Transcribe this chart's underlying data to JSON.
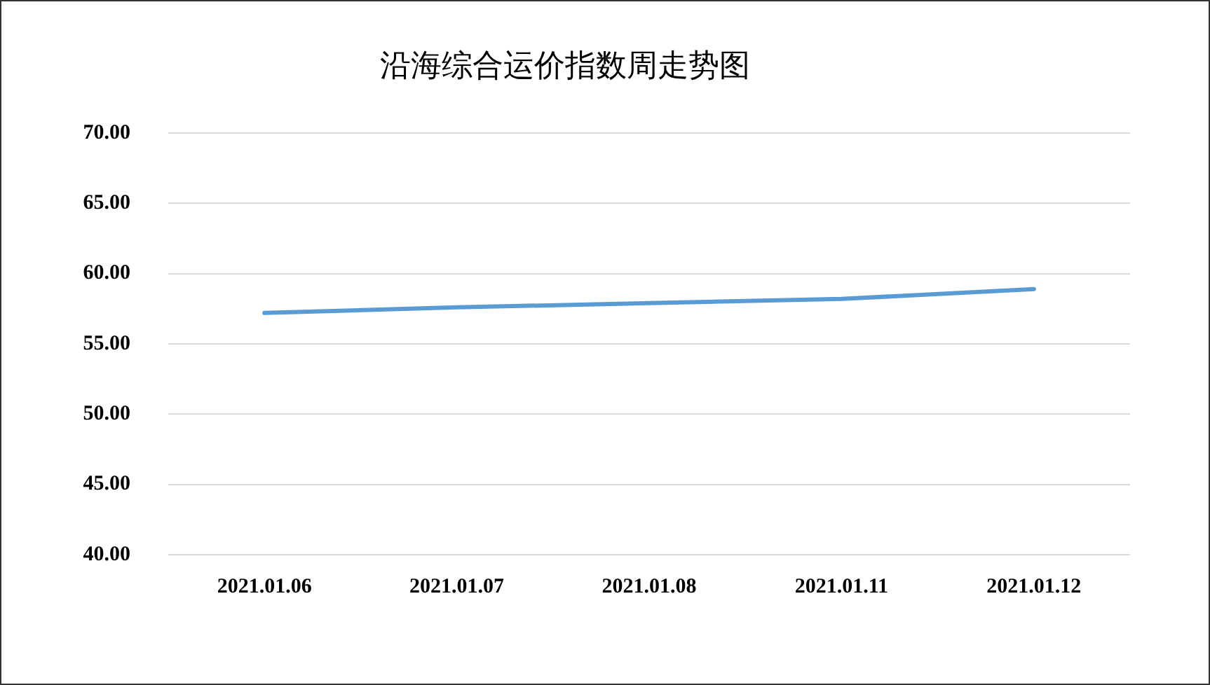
{
  "chart_data": {
    "type": "line",
    "title": "沿海综合运价指数周走势图",
    "categories": [
      "2021.01.06",
      "2021.01.07",
      "2021.01.08",
      "2021.01.11",
      "2021.01.12"
    ],
    "series": [
      {
        "color": "#5b9bd5",
        "values": [
          57.2,
          57.6,
          57.9,
          58.2,
          58.9
        ]
      }
    ],
    "ylim": [
      40,
      70
    ],
    "yticks": [
      {
        "value": 40,
        "label": "40.00"
      },
      {
        "value": 45,
        "label": "45.00"
      },
      {
        "value": 50,
        "label": "50.00"
      },
      {
        "value": 55,
        "label": "55.00"
      },
      {
        "value": 60,
        "label": "60.00"
      },
      {
        "value": 65,
        "label": "65.00"
      },
      {
        "value": 70,
        "label": "70.00"
      }
    ],
    "grid": "y",
    "legend": false,
    "marker": "none",
    "line_style": "solid"
  }
}
